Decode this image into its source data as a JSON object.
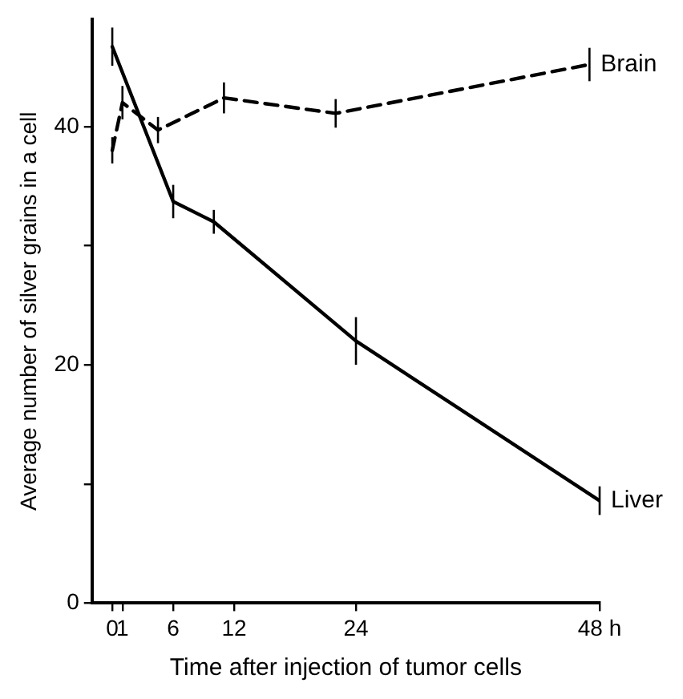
{
  "chart_data": {
    "type": "line",
    "xlabel": "Time after injection of tumor cells",
    "ylabel": "Average number of silver grains in a cell",
    "xlim": [
      -2,
      48
    ],
    "xticks": [
      0,
      1,
      6,
      12,
      24,
      {
        "value": 48,
        "label": "48 h"
      }
    ],
    "ylim": [
      0,
      49
    ],
    "yticks": [
      0,
      {
        "value": 10,
        "label": null
      },
      20,
      {
        "value": 30,
        "label": null
      },
      40
    ],
    "grid": false,
    "legend": false,
    "marker": "none",
    "series": [
      {
        "name": "Brain",
        "color": "#000000",
        "line_style": "dashed",
        "x": [
          0,
          1,
          4.5,
          11,
          22,
          47
        ],
        "values": [
          38,
          42,
          39.7,
          42.4,
          41.1,
          45.2
        ],
        "errors": [
          1.1,
          1.4,
          1.1,
          1.3,
          1.2,
          1.4
        ]
      },
      {
        "name": "Liver",
        "color": "#000000",
        "line_style": "solid",
        "x": [
          0,
          6,
          10,
          24,
          48
        ],
        "values": [
          46.7,
          33.7,
          32,
          22,
          8.6
        ],
        "errors": [
          1.6,
          1.4,
          1,
          2,
          1.2
        ]
      }
    ]
  }
}
